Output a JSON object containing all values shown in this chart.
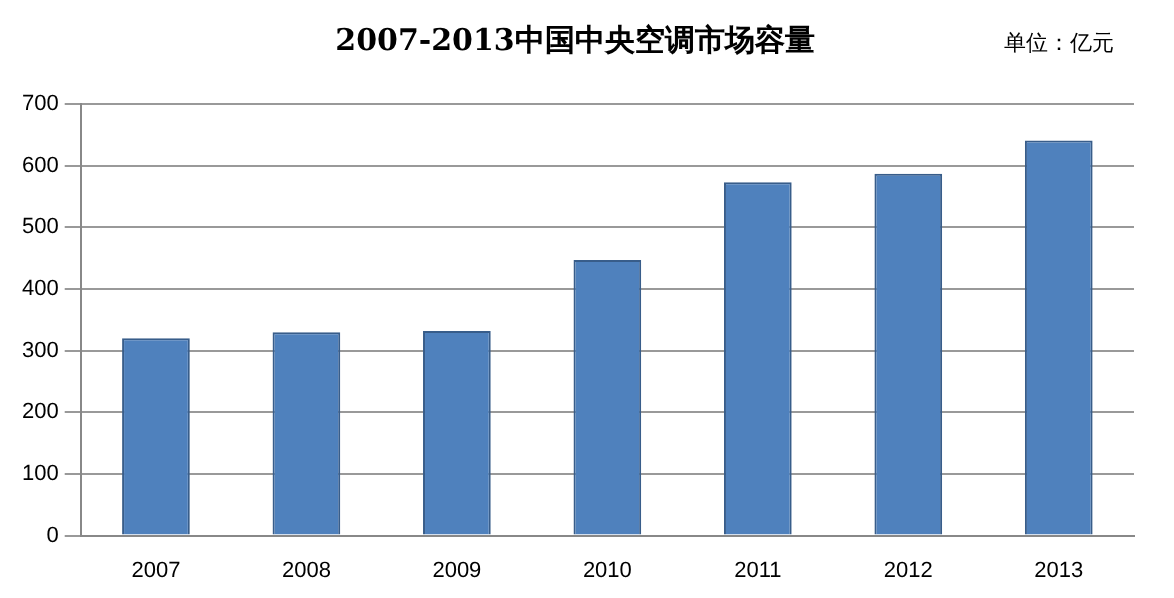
{
  "chart_data": {
    "type": "bar",
    "title": "2007-2013中国中央空调市场容量",
    "annotations": [
      "单位：亿元"
    ],
    "categories": [
      "2007",
      "2008",
      "2009",
      "2010",
      "2011",
      "2012",
      "2013"
    ],
    "values": [
      320,
      330,
      332,
      447,
      573,
      587,
      641
    ],
    "color": "#4f81bd",
    "ylim": [
      0,
      700
    ],
    "yticks": [
      0,
      100,
      200,
      300,
      400,
      500,
      600,
      700
    ],
    "grid": "y",
    "legend": false
  }
}
